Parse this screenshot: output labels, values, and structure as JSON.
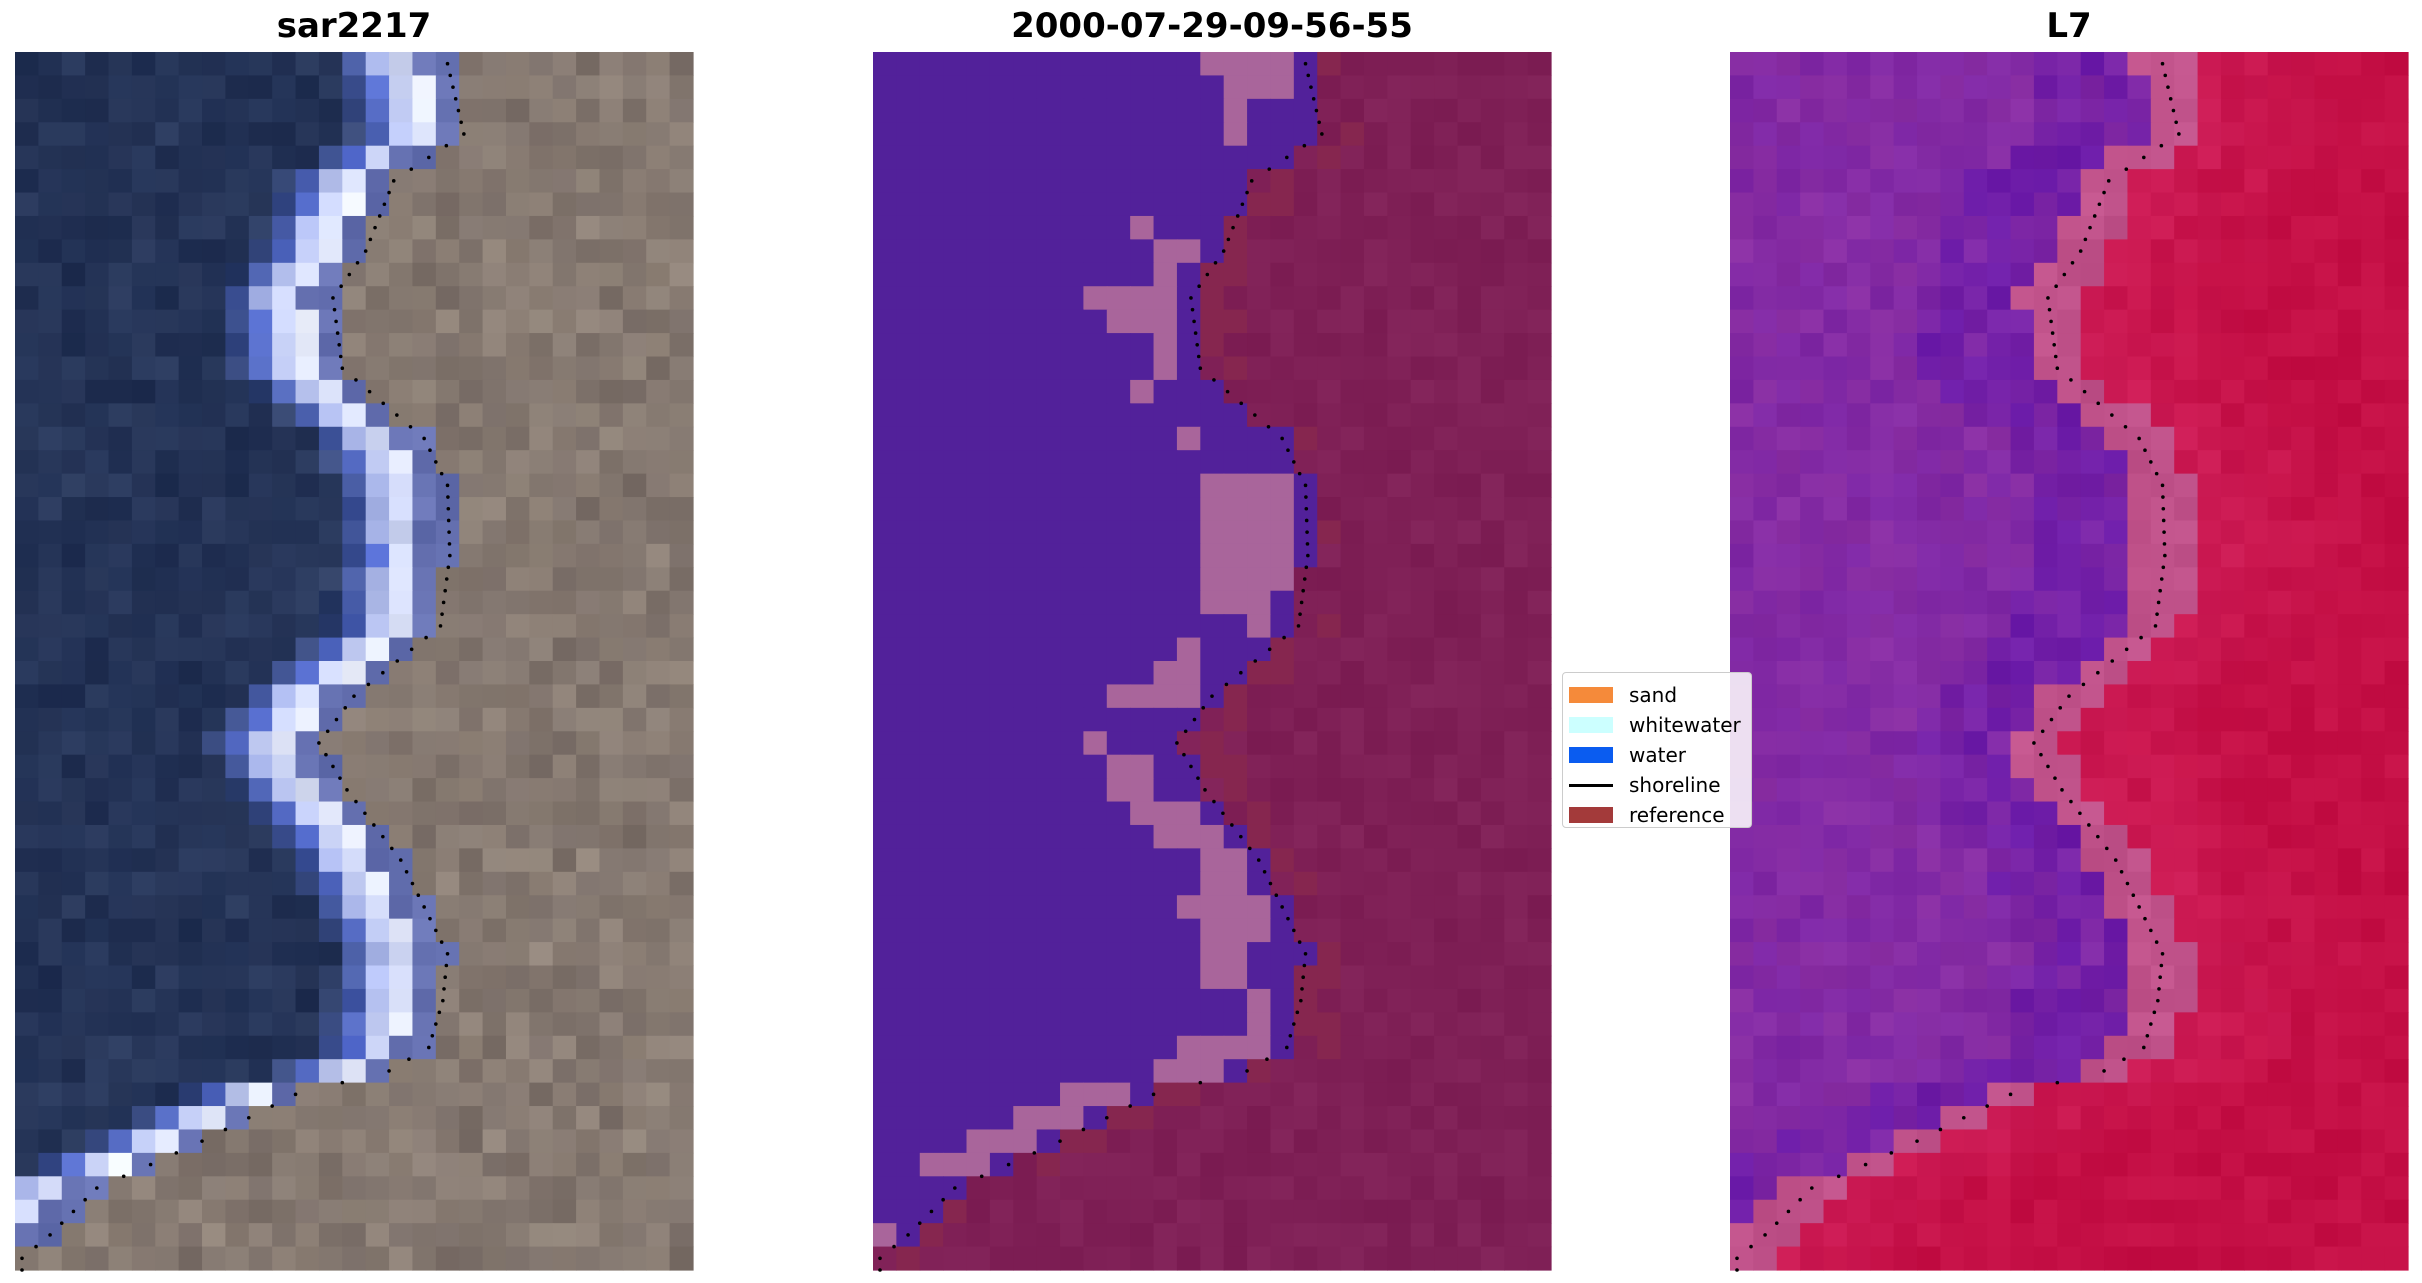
{
  "chart_data": [
    {
      "type": "image",
      "title": "sar2217",
      "shoreline_style": "black dotted line",
      "palette": {
        "water": "#1f2d4f",
        "sea_mid": "#2a3a5e",
        "surf": "#eef2ff",
        "surf_blue": "#5a72d8",
        "land": "#7a6e68",
        "land_light": "#978a7e"
      }
    },
    {
      "type": "image",
      "title": "2000-07-29-09-56-55",
      "shoreline_style": "black dotted line",
      "palette": {
        "water": "#52219a",
        "whitewater": "#a9659b",
        "land": "#7f2056",
        "reference": "#8b2a4b"
      }
    },
    {
      "type": "image",
      "title": "L7",
      "shoreline_style": "black dotted line",
      "palette": {
        "water_deep": "#6a1aa8",
        "water": "#8a2fa3",
        "transition": "#c0528a",
        "land": "#cf1f5a",
        "land_deep": "#c40f45"
      }
    }
  ],
  "legend": {
    "entries": [
      {
        "label": "sand",
        "color": "#f58a3a",
        "kind": "patch"
      },
      {
        "label": "whitewater",
        "color": "#ccffff",
        "kind": "patch"
      },
      {
        "label": "water",
        "color": "#0a5cf0",
        "kind": "patch"
      },
      {
        "label": "shoreline",
        "color": "#000000",
        "kind": "line"
      },
      {
        "label": "reference",
        "color": "#a33a3a",
        "kind": "patch"
      }
    ]
  }
}
